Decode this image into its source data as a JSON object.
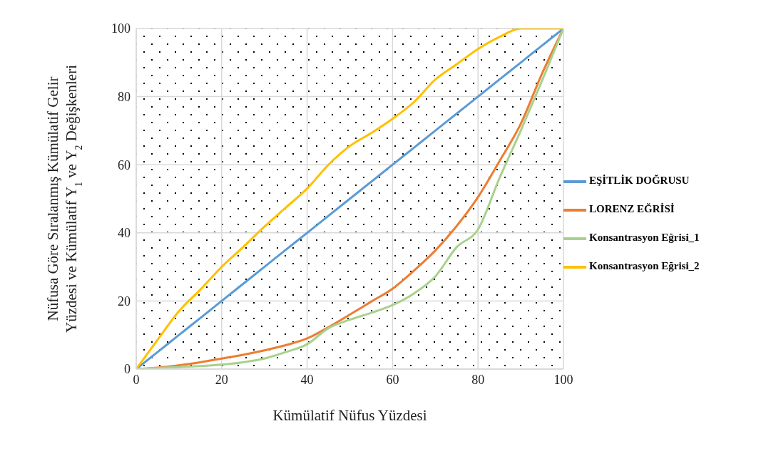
{
  "chart_data": {
    "type": "line",
    "xlabel": "Kümülatif Nüfus Yüzdesi",
    "ylabel": "Nüfusa Göre Sıralanmış Kümülatif Gelir Yüzdesi ve Kümülatif Y$_{1}$ ve Y$_{2}$ Değişkenleri",
    "x": [
      0,
      5,
      10,
      15,
      20,
      25,
      30,
      35,
      40,
      45,
      50,
      55,
      60,
      65,
      70,
      75,
      80,
      85,
      90,
      95,
      100
    ],
    "series": [
      {
        "name": "EŞİTLİK DOĞRUSU",
        "color": "#5b9bd5",
        "values": [
          0,
          5,
          10,
          15,
          20,
          25,
          30,
          35,
          40,
          45,
          50,
          55,
          60,
          65,
          70,
          75,
          80,
          85,
          90,
          95,
          100
        ]
      },
      {
        "name": "LORENZ EĞRİSİ",
        "color": "#ed7d31",
        "values": [
          0,
          0.4,
          1.1,
          2,
          3.1,
          4.2,
          5.5,
          7,
          9,
          12.3,
          16,
          19.8,
          23.6,
          28.9,
          34.8,
          42,
          50.5,
          61,
          72,
          86.8,
          100
        ]
      },
      {
        "name": "Konsantrasyon Eğrisi_1",
        "color": "#a9d18e",
        "values": [
          0,
          0.3,
          0.6,
          0.9,
          1.3,
          2,
          3.1,
          5,
          7.3,
          12,
          14.5,
          16.5,
          18.8,
          22.2,
          27.2,
          35.8,
          41,
          56,
          70,
          84.7,
          100
        ]
      },
      {
        "name": "Konsantrasyon Eğrisi_2",
        "color": "#ffc000",
        "values": [
          0,
          8.6,
          17,
          23.3,
          30,
          35.8,
          41.8,
          47.4,
          53,
          60,
          65.5,
          69.3,
          73.5,
          78.4,
          85,
          89.5,
          94,
          97.5,
          100,
          100,
          100
        ]
      }
    ],
    "xlim": [
      0,
      100
    ],
    "xticks": [
      0,
      20,
      40,
      60,
      80,
      100
    ],
    "ylim": [
      0,
      100
    ],
    "yticks": [
      0,
      20,
      40,
      60,
      80,
      100
    ],
    "grid": true,
    "legend": "right"
  }
}
